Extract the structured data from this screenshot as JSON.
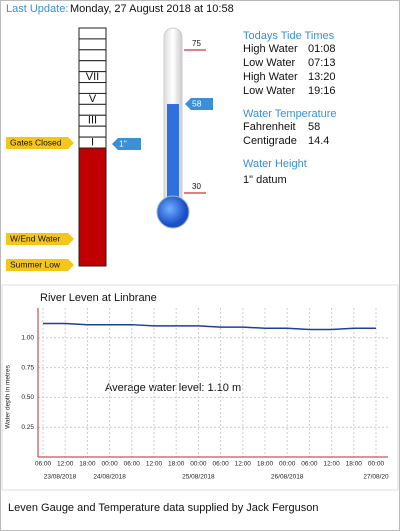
{
  "header": {
    "label": "Last Update:",
    "date": "Monday, 27 August 2018 at 10:58"
  },
  "gauge": {
    "numerals": [
      "VII",
      "V",
      "III",
      "I"
    ],
    "level_tag": "1\"",
    "markers": [
      "Gates Closed",
      "W/End Water",
      "Summer Low"
    ]
  },
  "thermometer": {
    "value": 58,
    "ticks": [
      30,
      75
    ]
  },
  "tides": {
    "title": "Todays Tide Times",
    "rows": [
      [
        "High Water",
        "01:08"
      ],
      [
        "Low Water",
        "07:13"
      ],
      [
        "High Water",
        "13:20"
      ],
      [
        "Low Water",
        "19:16"
      ]
    ]
  },
  "temperature": {
    "title": "Water Temperature",
    "rows": [
      [
        "Fahrenheit",
        "58"
      ],
      [
        "Centigrade",
        "14.4"
      ]
    ]
  },
  "height": {
    "title": "Water Height",
    "value": "1\"  datum"
  },
  "chart_data": {
    "type": "line",
    "title": "River Leven at Linbrane",
    "y_label": "Water depth in metres",
    "annotation": "Average water level: 1.10 m",
    "categories": [
      "06:00",
      "12:00",
      "18:00",
      "00:00",
      "06:00",
      "12:00",
      "18:00",
      "00:00",
      "06:00",
      "12:00",
      "18:00",
      "00:00",
      "06:00",
      "12:00",
      "18:00",
      "00:00"
    ],
    "dates": [
      "23/08/2018",
      "24/08/2018",
      "25/08/2018",
      "26/08/2018",
      "27/08/20"
    ],
    "series": [
      {
        "name": "River Leven",
        "color": "#1f3f99",
        "values": [
          1.12,
          1.12,
          1.11,
          1.11,
          1.11,
          1.1,
          1.1,
          1.1,
          1.09,
          1.09,
          1.08,
          1.08,
          1.07,
          1.07,
          1.08,
          1.08
        ]
      }
    ],
    "ylim": [
      0,
      1.25
    ],
    "yticks": [
      0.25,
      {
        "value": 0.5,
        "label": "0.50"
      },
      0.75,
      {
        "value": 1.0,
        "label": "1.00"
      }
    ],
    "grid": true
  },
  "footer": "Leven Gauge and Temperature data supplied by Jack Ferguson"
}
